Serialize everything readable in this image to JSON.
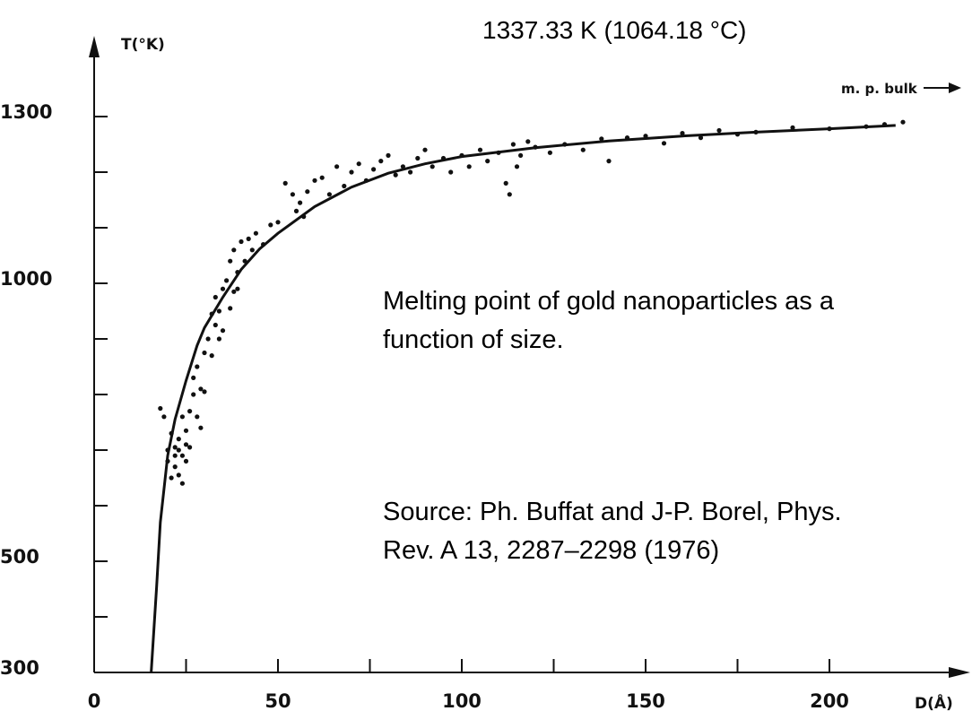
{
  "bulk_melting_point": "1337.33 K (1064.18 °C)",
  "caption": {
    "line1": "Melting point of gold nanoparticles as a",
    "line2": "function of size.",
    "line3": "Source: Ph. Buffat and J-P. Borel, Phys.",
    "line4": "Rev. A 13, 2287–2298 (1976)"
  },
  "colors": {
    "ink": "#111111",
    "background": "#ffffff"
  },
  "chart_data": {
    "type": "scatter",
    "xlabel": "D(Å)",
    "ylabel": "T(°K)",
    "xlim": [
      0,
      225
    ],
    "ylim": [
      300,
      1300
    ],
    "x_ticks": [
      0,
      50,
      100,
      150,
      200
    ],
    "y_ticks": [
      300,
      500,
      1000,
      1300
    ],
    "annotation": "m. p. bulk",
    "curve": {
      "x": [
        15.5,
        17,
        18,
        20,
        22,
        25,
        28,
        30,
        35,
        40,
        45,
        50,
        60,
        70,
        80,
        90,
        100,
        120,
        140,
        160,
        180,
        200,
        218
      ],
      "y": [
        300,
        455,
        570,
        690,
        755,
        825,
        888,
        920,
        975,
        1025,
        1062,
        1090,
        1138,
        1173,
        1198,
        1215,
        1228,
        1244,
        1256,
        1265,
        1272,
        1278,
        1284
      ]
    },
    "points": {
      "x": [
        18,
        19,
        20,
        20,
        21,
        21,
        22,
        22,
        22,
        23,
        23,
        23,
        24,
        24,
        24,
        25,
        25,
        25,
        26,
        26,
        27,
        27,
        28,
        28,
        29,
        29,
        30,
        30,
        31,
        32,
        32,
        33,
        33,
        34,
        34,
        35,
        35,
        36,
        37,
        37,
        38,
        38,
        39,
        39,
        40,
        41,
        42,
        43,
        44,
        46,
        48,
        50,
        52,
        54,
        55,
        56,
        57,
        58,
        60,
        62,
        64,
        66,
        68,
        70,
        72,
        74,
        76,
        78,
        80,
        82,
        84,
        86,
        88,
        90,
        92,
        95,
        97,
        100,
        102,
        105,
        107,
        110,
        112,
        113,
        114,
        115,
        116,
        118,
        120,
        124,
        128,
        133,
        138,
        140,
        145,
        150,
        155,
        160,
        165,
        170,
        175,
        180,
        190,
        200,
        210,
        215,
        220
      ],
      "y": [
        775,
        760,
        700,
        680,
        730,
        650,
        705,
        690,
        670,
        720,
        655,
        700,
        760,
        690,
        640,
        735,
        710,
        680,
        770,
        705,
        800,
        830,
        760,
        850,
        810,
        740,
        875,
        805,
        900,
        945,
        870,
        975,
        925,
        950,
        900,
        990,
        915,
        1005,
        955,
        1040,
        985,
        1060,
        1020,
        990,
        1075,
        1040,
        1080,
        1060,
        1090,
        1070,
        1105,
        1110,
        1180,
        1160,
        1130,
        1145,
        1120,
        1165,
        1185,
        1190,
        1160,
        1210,
        1175,
        1200,
        1215,
        1185,
        1205,
        1220,
        1230,
        1195,
        1210,
        1200,
        1225,
        1240,
        1210,
        1225,
        1200,
        1230,
        1210,
        1240,
        1220,
        1235,
        1180,
        1160,
        1250,
        1210,
        1230,
        1255,
        1245,
        1235,
        1250,
        1240,
        1260,
        1220,
        1262,
        1265,
        1252,
        1270,
        1262,
        1275,
        1268,
        1272,
        1280,
        1278,
        1282,
        1286,
        1290
      ]
    }
  }
}
